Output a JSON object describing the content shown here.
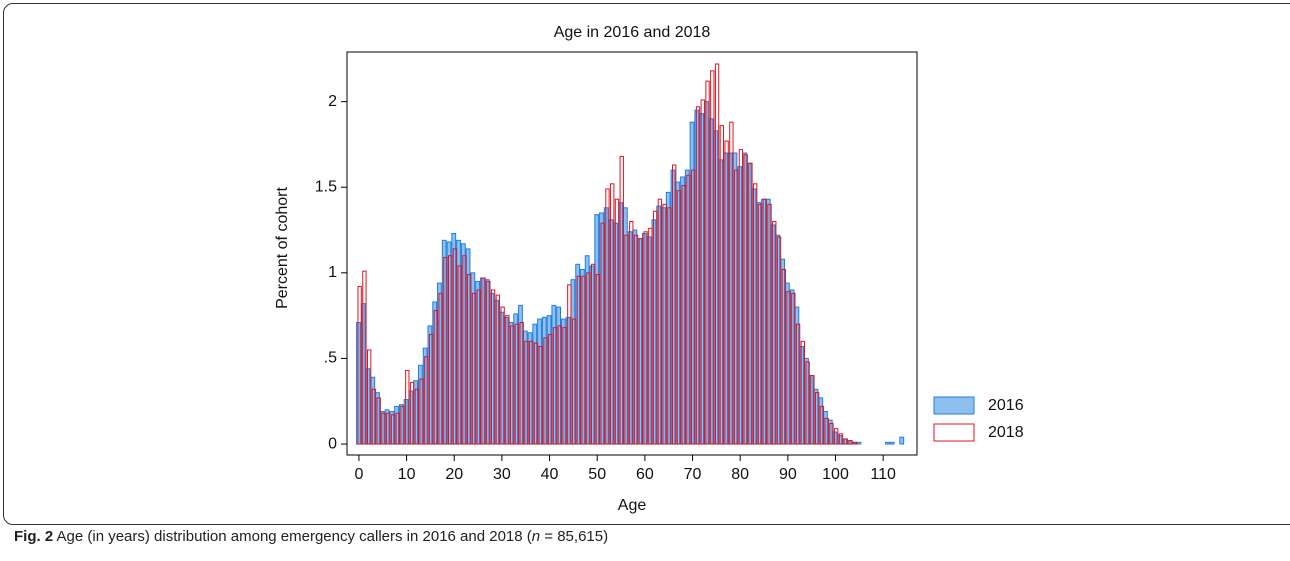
{
  "chart_data": {
    "type": "histogram",
    "title": "Age in 2016 and 2018",
    "xlabel": "Age",
    "ylabel": "Percent of cohort",
    "x": [
      0,
      1,
      2,
      3,
      4,
      5,
      6,
      7,
      8,
      9,
      10,
      11,
      12,
      13,
      14,
      15,
      16,
      17,
      18,
      19,
      20,
      21,
      22,
      23,
      24,
      25,
      26,
      27,
      28,
      29,
      30,
      31,
      32,
      33,
      34,
      35,
      36,
      37,
      38,
      39,
      40,
      41,
      42,
      43,
      44,
      45,
      46,
      47,
      48,
      49,
      50,
      51,
      52,
      53,
      54,
      55,
      56,
      57,
      58,
      59,
      60,
      61,
      62,
      63,
      64,
      65,
      66,
      67,
      68,
      69,
      70,
      71,
      72,
      73,
      74,
      75,
      76,
      77,
      78,
      79,
      80,
      81,
      82,
      83,
      84,
      85,
      86,
      87,
      88,
      89,
      90,
      91,
      92,
      93,
      94,
      95,
      96,
      97,
      98,
      99,
      100,
      101,
      102,
      103,
      104,
      105,
      106,
      107,
      108,
      109,
      110,
      111,
      112,
      113,
      114
    ],
    "series": [
      {
        "name": "2016",
        "color": "#1f7fe0",
        "values": [
          0.71,
          0.82,
          0.44,
          0.39,
          0.3,
          0.19,
          0.2,
          0.19,
          0.22,
          0.23,
          0.26,
          0.31,
          0.37,
          0.46,
          0.56,
          0.69,
          0.83,
          0.94,
          1.19,
          1.18,
          1.23,
          1.19,
          1.17,
          1.14,
          1.0,
          0.95,
          0.97,
          0.96,
          0.88,
          0.84,
          0.77,
          0.74,
          0.71,
          0.76,
          0.81,
          0.66,
          0.65,
          0.7,
          0.73,
          0.74,
          0.75,
          0.81,
          0.8,
          0.73,
          0.74,
          0.96,
          1.05,
          1.02,
          1.1,
          1.04,
          1.34,
          1.35,
          1.38,
          1.31,
          1.29,
          1.41,
          1.38,
          1.24,
          1.25,
          1.2,
          1.23,
          1.21,
          1.31,
          1.39,
          1.38,
          1.47,
          1.6,
          1.53,
          1.56,
          1.6,
          1.88,
          1.95,
          1.93,
          2.0,
          1.9,
          1.83,
          1.66,
          1.7,
          1.7,
          1.7,
          1.62,
          1.7,
          1.64,
          1.49,
          1.41,
          1.43,
          1.43,
          1.28,
          1.22,
          1.08,
          0.94,
          0.9,
          0.8,
          0.57,
          0.5,
          0.4,
          0.32,
          0.27,
          0.19,
          0.14,
          0.07,
          0.05,
          0.03,
          0.02,
          0.01,
          0.01,
          0,
          0,
          0,
          0,
          0,
          0.01,
          0.01,
          0,
          0.04
        ]
      },
      {
        "name": "2018",
        "color": "#e0141e",
        "values": [
          0.92,
          1.01,
          0.55,
          0.32,
          0.27,
          0.18,
          0.18,
          0.17,
          0.18,
          0.22,
          0.43,
          0.36,
          0.32,
          0.38,
          0.51,
          0.64,
          0.78,
          0.88,
          1.09,
          1.1,
          1.14,
          1.04,
          1.1,
          0.99,
          0.88,
          0.9,
          0.97,
          0.95,
          0.9,
          0.87,
          0.8,
          0.75,
          0.69,
          0.7,
          0.71,
          0.6,
          0.6,
          0.59,
          0.57,
          0.62,
          0.64,
          0.68,
          0.69,
          0.68,
          0.93,
          0.73,
          0.98,
          0.98,
          1.0,
          1.05,
          0.99,
          1.29,
          1.49,
          1.52,
          1.43,
          1.68,
          1.22,
          1.3,
          1.22,
          1.2,
          1.24,
          1.26,
          1.36,
          1.43,
          1.4,
          1.38,
          1.63,
          1.48,
          1.51,
          1.57,
          1.6,
          1.97,
          2.01,
          2.12,
          2.18,
          2.22,
          1.86,
          1.77,
          1.88,
          1.6,
          1.72,
          1.69,
          1.64,
          1.52,
          1.4,
          1.43,
          1.4,
          1.3,
          1.21,
          1.02,
          0.89,
          0.88,
          0.7,
          0.6,
          0.48,
          0.4,
          0.3,
          0.22,
          0.15,
          0.12,
          0.09,
          0.06,
          0.03,
          0.02,
          0.01,
          0,
          0,
          0,
          0,
          0,
          0,
          0,
          0,
          0,
          0
        ]
      }
    ],
    "xlim": [
      -2.5,
      117.1
    ],
    "ylim": [
      -0.064,
      2.29
    ],
    "xticks": [
      0,
      10,
      20,
      30,
      40,
      50,
      60,
      70,
      80,
      90,
      100,
      110
    ],
    "yticks": [
      0,
      {
        "value": 0.5,
        "label": ".5"
      },
      1,
      1.5,
      2
    ]
  },
  "caption": {
    "label": "Fig. 2",
    "text_before": "Age (in years) distribution among emergency callers in 2016 and 2018 (",
    "n": "n",
    "text_after": " = 85,615)"
  }
}
